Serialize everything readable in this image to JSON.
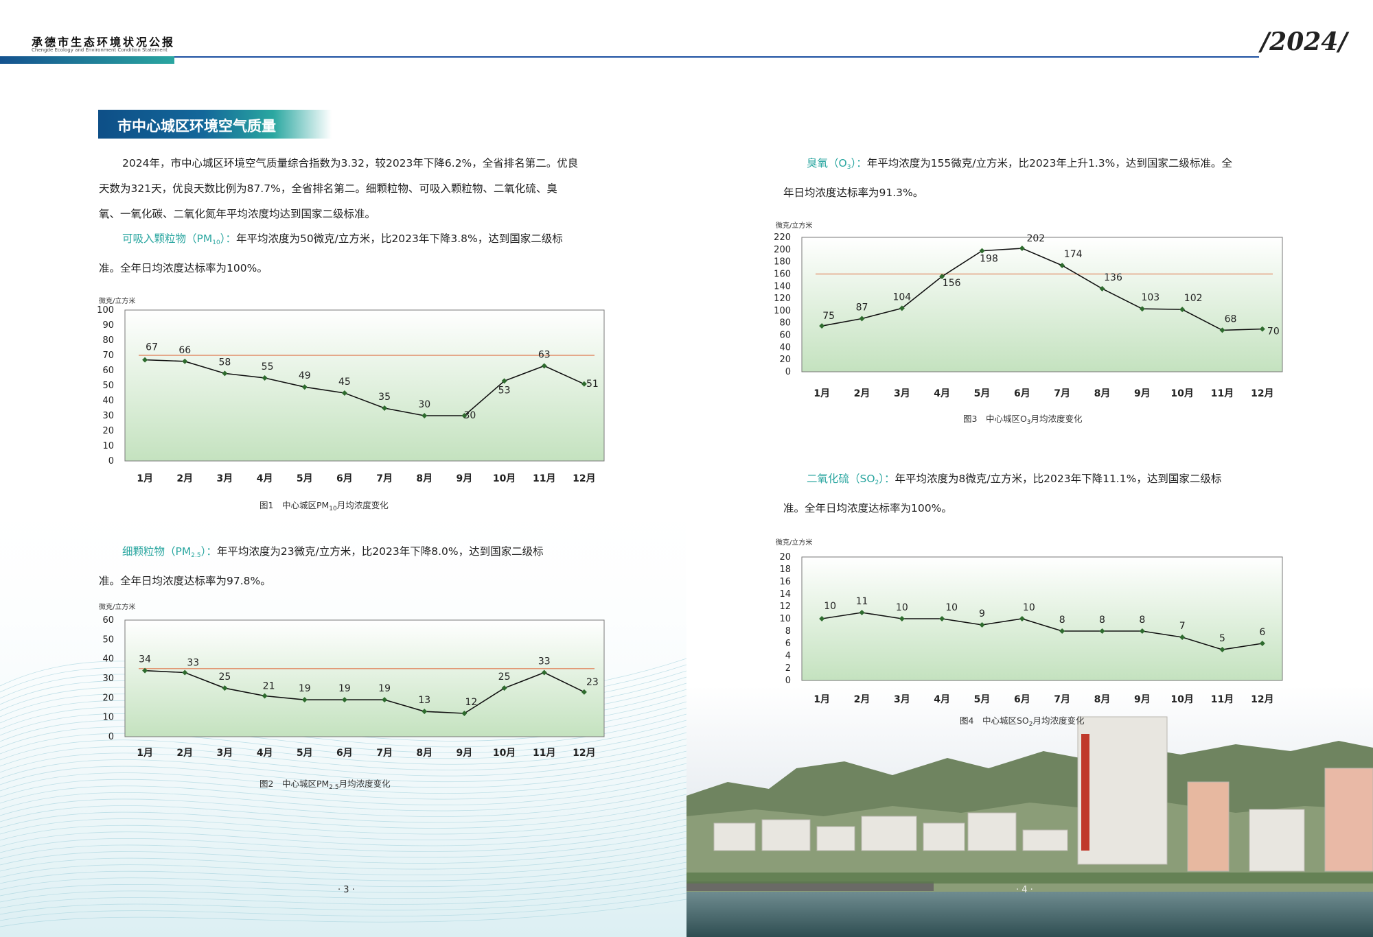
{
  "header": {
    "title": "承德市生态环境状况公报",
    "subtitle": "Chengde Ecology and Environment Condition Statement",
    "year": "2024"
  },
  "section": {
    "title": "市中心城区环境空气质量"
  },
  "intro": {
    "line1": "2024年，市中心城区环境空气质量综合指数为3.32，较2023年下降6.2%，全省排名第二。优良",
    "line2": "天数为321天，优良天数比例为87.7%，全省排名第二。细颗粒物、可吸入颗粒物、二氧化硫、臭",
    "line3": "氧、一氧化碳、二氧化氮年平均浓度均达到国家二级标准。"
  },
  "pm10_text": {
    "name": "可吸入颗粒物（PM",
    "sub": "10",
    "name_end": "）：",
    "line1": "年平均浓度为50微克/立方米，比2023年下降3.8%，达到国家二级标",
    "line2": "准。全年日均浓度达标率为100%。"
  },
  "pm25_text": {
    "name": "细颗粒物（PM",
    "sub": "2.5",
    "name_end": "）：",
    "line1": "年平均浓度为23微克/立方米，比2023年下降8.0%，达到国家二级标",
    "line2": "准。全年日均浓度达标率为97.8%。"
  },
  "o3_text": {
    "name": "臭氧（O",
    "sub": "3",
    "name_end": "）：",
    "line1": "年平均浓度为155微克/立方米，比2023年上升1.3%，达到国家二级标准。全",
    "line2": "年日均浓度达标率为91.3%。"
  },
  "so2_text": {
    "name": "二氧化硫（SO",
    "sub": "2",
    "name_end": "）：",
    "line1": "年平均浓度为8微克/立方米，比2023年下降11.1%，达到国家二级标",
    "line2": "准。全年日均浓度达标率为100%。"
  },
  "chart_data": [
    {
      "type": "line",
      "unit": "微克/立方米",
      "caption_pre": "图1　中心城区PM",
      "caption_sub": "10",
      "caption_post": "月均浓度变化",
      "categories": [
        "1月",
        "2月",
        "3月",
        "4月",
        "5月",
        "6月",
        "7月",
        "8月",
        "9月",
        "10月",
        "11月",
        "12月"
      ],
      "values": [
        67,
        66,
        58,
        55,
        49,
        45,
        35,
        30,
        30,
        53,
        63,
        51
      ],
      "reference_line": 70,
      "ylim": [
        0,
        100
      ],
      "yticks": [
        0,
        10,
        20,
        30,
        40,
        50,
        60,
        70,
        80,
        90,
        100
      ],
      "colors": {
        "line": "#111111",
        "marker": "#2e6b2e",
        "reference": "#e07a50"
      }
    },
    {
      "type": "line",
      "unit": "微克/立方米",
      "caption_pre": "图2　中心城区PM",
      "caption_sub": "2.5",
      "caption_post": "月均浓度变化",
      "categories": [
        "1月",
        "2月",
        "3月",
        "4月",
        "5月",
        "6月",
        "7月",
        "8月",
        "9月",
        "10月",
        "11月",
        "12月"
      ],
      "values": [
        34,
        33,
        25,
        21,
        19,
        19,
        19,
        13,
        12,
        25,
        33,
        23
      ],
      "reference_line": 35,
      "ylim": [
        0,
        60
      ],
      "yticks": [
        0,
        10,
        20,
        30,
        40,
        50,
        60
      ],
      "colors": {
        "line": "#111111",
        "marker": "#2e6b2e",
        "reference": "#e07a50"
      }
    },
    {
      "type": "line",
      "unit": "微克/立方米",
      "caption_pre": "图3　中心城区O",
      "caption_sub": "3",
      "caption_post": "月均浓度变化",
      "categories": [
        "1月",
        "2月",
        "3月",
        "4月",
        "5月",
        "6月",
        "7月",
        "8月",
        "9月",
        "10月",
        "11月",
        "12月"
      ],
      "values": [
        75,
        87,
        104,
        156,
        198,
        202,
        174,
        136,
        103,
        102,
        68,
        70
      ],
      "reference_line": 160,
      "ylim": [
        0,
        220
      ],
      "yticks": [
        0,
        20,
        40,
        60,
        80,
        100,
        120,
        140,
        160,
        180,
        200,
        220
      ],
      "colors": {
        "line": "#111111",
        "marker": "#2e6b2e",
        "reference": "#e07a50"
      }
    },
    {
      "type": "line",
      "unit": "微克/立方米",
      "caption_pre": "图4　中心城区SO",
      "caption_sub": "2",
      "caption_post": "月均浓度变化",
      "categories": [
        "1月",
        "2月",
        "3月",
        "4月",
        "5月",
        "6月",
        "7月",
        "8月",
        "9月",
        "10月",
        "11月",
        "12月"
      ],
      "values": [
        10,
        11,
        10,
        10,
        9,
        10,
        8,
        8,
        8,
        7,
        5,
        6
      ],
      "reference_line": null,
      "ylim": [
        0,
        20
      ],
      "yticks": [
        0,
        2,
        4,
        6,
        8,
        10,
        12,
        14,
        16,
        18,
        20
      ],
      "colors": {
        "line": "#111111",
        "marker": "#2e6b2e",
        "reference": "#e07a50"
      }
    }
  ],
  "page_numbers": {
    "left": "· 3 ·",
    "right": "· 4 ·"
  },
  "colors": {
    "accent": "#2aa6a0",
    "banner": "#0e4f87",
    "rule": "#1b4fa0"
  }
}
